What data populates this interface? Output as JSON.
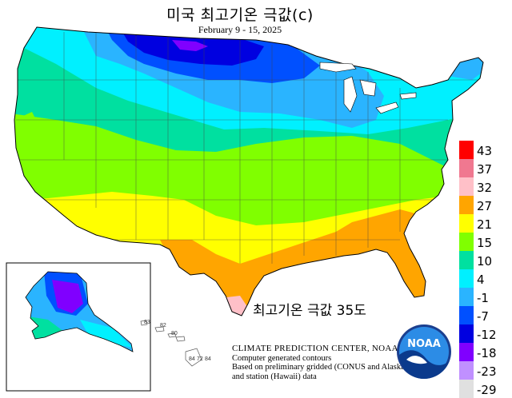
{
  "title": "미국 최고기온 극값(c)",
  "subtitle": "February 9 - 15, 2025",
  "annotation": "최고기온 극값 35도",
  "credits": {
    "line1": "CLIMATE PREDICTION CENTER, NOAA",
    "line2": "Computer generated contours",
    "line3": "Based on preliminary gridded (CONUS and Alaska)",
    "line4": "and station (Hawaii) data"
  },
  "logo_text": "NOAA",
  "legend": [
    {
      "label": "43",
      "color": "#ff0000"
    },
    {
      "label": "37",
      "color": "#f07890"
    },
    {
      "label": "32",
      "color": "#ffc0c8"
    },
    {
      "label": "27",
      "color": "#ffa500"
    },
    {
      "label": "21",
      "color": "#ffff00"
    },
    {
      "label": "15",
      "color": "#80ff00"
    },
    {
      "label": "10",
      "color": "#00e0a0"
    },
    {
      "label": "4",
      "color": "#00f0ff"
    },
    {
      "label": "-1",
      "color": "#2ab4ff"
    },
    {
      "label": "-7",
      "color": "#0050ff"
    },
    {
      "label": "-12",
      "color": "#0000e0"
    },
    {
      "label": "-18",
      "color": "#8000ff"
    },
    {
      "label": "-23",
      "color": "#c090ff"
    },
    {
      "label": "-29",
      "color": "#e0e0e0"
    }
  ],
  "hawaii_labels": [
    "83",
    "82",
    "80",
    "84",
    "72",
    "84"
  ]
}
